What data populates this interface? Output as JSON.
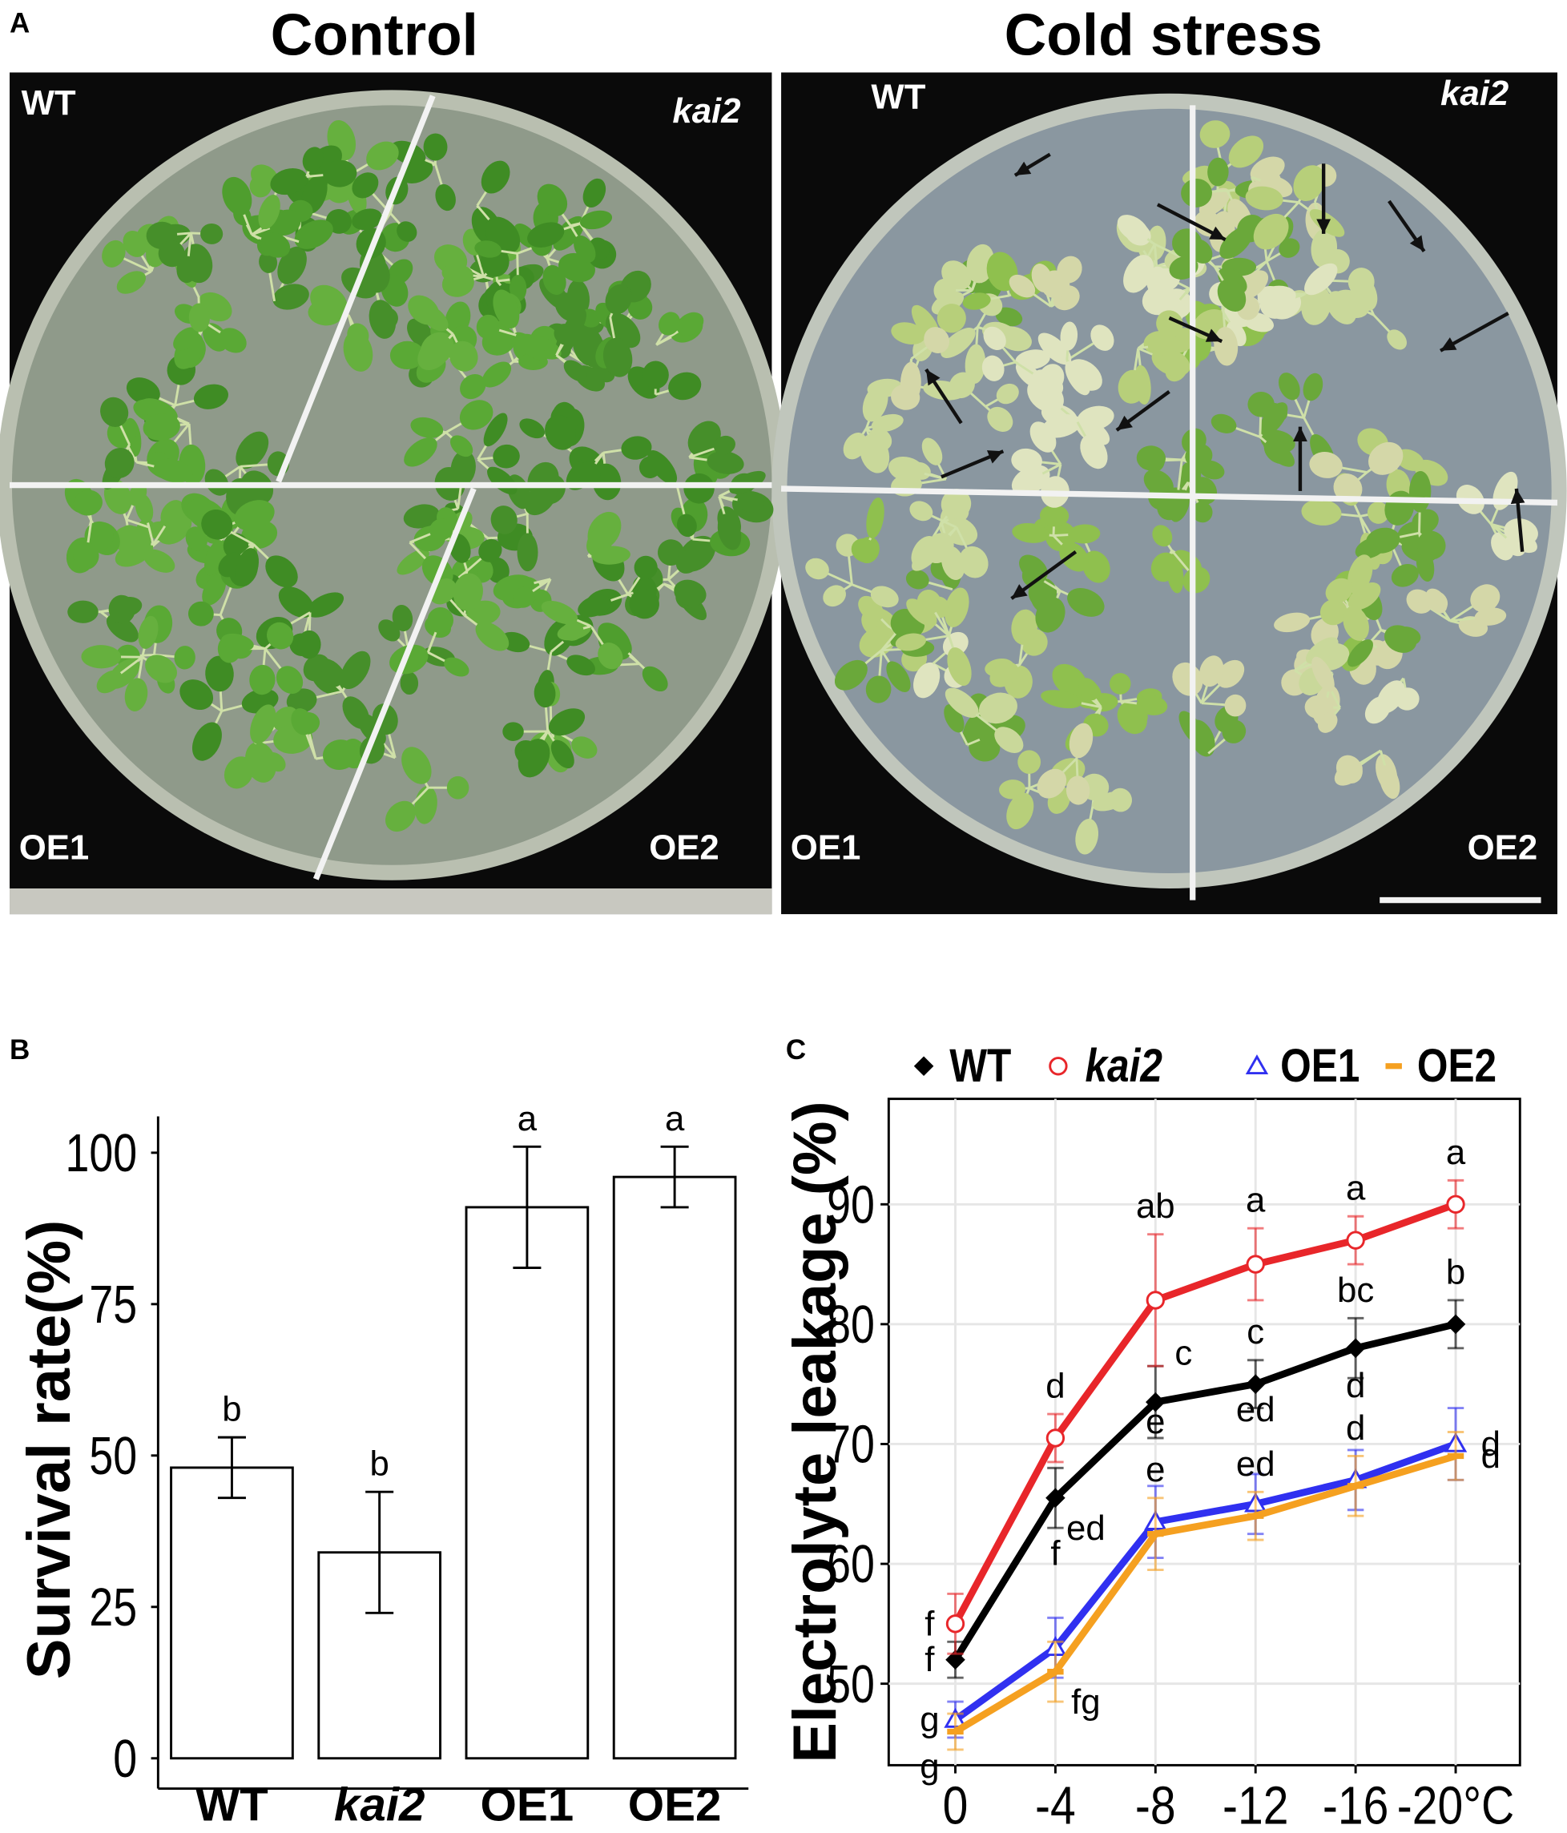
{
  "panel_a": {
    "label": "A",
    "titles": [
      "Control",
      "Cold stress"
    ],
    "plates": [
      {
        "quadrants": [
          "WT",
          "kai2",
          "OE1",
          "OE2"
        ]
      },
      {
        "quadrants": [
          "WT",
          "kai2",
          "OE1",
          "OE2"
        ]
      }
    ]
  },
  "chart_data": [
    {
      "type": "bar",
      "panel": "B",
      "ylabel": "Survival rate(%)",
      "categories": [
        "WT",
        "kai2",
        "OE1",
        "OE2"
      ],
      "values": [
        48,
        34,
        91,
        96
      ],
      "errors": [
        5,
        10,
        10,
        5
      ],
      "annotations": [
        "b",
        "b",
        "a",
        "a"
      ],
      "color": "#ffffff",
      "edgecolor": "#000000",
      "ylim": [
        -5,
        106
      ],
      "yticks": [
        0,
        25,
        50,
        75,
        100
      ]
    },
    {
      "type": "line",
      "panel": "C",
      "ylabel": "Electrolyte leakage (%)",
      "categories": [
        "0",
        "-4",
        "-8",
        "-12",
        "-16",
        "-20°C"
      ],
      "series": [
        {
          "name": "WT",
          "color": "#000000",
          "marker": "diamond",
          "values": [
            52,
            65.5,
            73.5,
            75,
            78,
            80
          ],
          "errors": [
            1.5,
            2.5,
            3,
            2,
            2.5,
            2
          ],
          "annotations": [
            "f",
            "ed",
            "c",
            "c",
            "bc",
            "b"
          ]
        },
        {
          "name": "kai2",
          "color": "#e8262a",
          "marker": "circle",
          "values": [
            55,
            70.5,
            82,
            85,
            87,
            90
          ],
          "errors": [
            2.5,
            2,
            5.5,
            3,
            2,
            2
          ],
          "annotations": [
            "f",
            "d",
            "ab",
            "a",
            "a",
            "a"
          ]
        },
        {
          "name": "OE1",
          "color": "#3030f0",
          "marker": "triangle",
          "values": [
            47,
            53,
            63.5,
            65,
            67,
            70
          ],
          "errors": [
            1.5,
            2.5,
            3,
            2.5,
            2.5,
            3
          ],
          "annotations": [
            "g",
            "f",
            "e",
            "ed",
            "d",
            "d"
          ]
        },
        {
          "name": "OE2",
          "color": "#f5a020",
          "marker": "dash",
          "values": [
            46,
            51,
            62.5,
            64,
            66.5,
            69
          ],
          "errors": [
            1.5,
            2.5,
            3,
            2,
            2.5,
            2
          ],
          "annotations": [
            "g",
            "fg",
            "e",
            "ed",
            "d",
            "d"
          ]
        }
      ],
      "ylim": [
        43.2,
        98.8
      ],
      "yticks": [
        50,
        60,
        70,
        80,
        90
      ],
      "grid": true,
      "legend": "top"
    }
  ]
}
